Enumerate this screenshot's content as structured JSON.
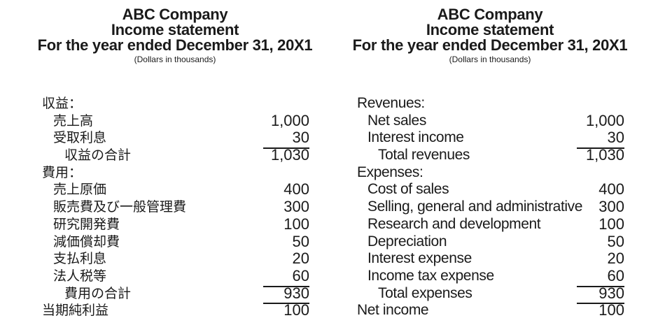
{
  "statements": [
    {
      "language": "ja",
      "title_lines": [
        "ABC Company",
        "Income statement",
        "For the year ended December 31, 20X1"
      ],
      "units": "(Dollars in thousands)",
      "rows": [
        {
          "label": "収益：",
          "amount": ""
        },
        {
          "label": "売上高",
          "amount": "1,000"
        },
        {
          "label": "受取利息",
          "amount": "30"
        },
        {
          "label": "収益の合計",
          "amount": "1,030"
        },
        {
          "label": "費用：",
          "amount": ""
        },
        {
          "label": "売上原価",
          "amount": "400"
        },
        {
          "label": "販売費及び一般管理費",
          "amount": "300"
        },
        {
          "label": "研究開発費",
          "amount": "100"
        },
        {
          "label": "減価償却費",
          "amount": "50"
        },
        {
          "label": "支払利息",
          "amount": "20"
        },
        {
          "label": "法人税等",
          "amount": "60"
        },
        {
          "label": "費用の合計",
          "amount": "930"
        },
        {
          "label": "当期純利益",
          "amount": "100"
        }
      ]
    },
    {
      "language": "en",
      "title_lines": [
        "ABC Company",
        "Income statement",
        "For the year ended December 31, 20X1"
      ],
      "units": "(Dollars in thousands)",
      "rows": [
        {
          "label": "Revenues:",
          "amount": ""
        },
        {
          "label": "Net sales",
          "amount": "1,000"
        },
        {
          "label": "Interest income",
          "amount": "30"
        },
        {
          "label": "Total revenues",
          "amount": "1,030"
        },
        {
          "label": "Expenses:",
          "amount": ""
        },
        {
          "label": "Cost of sales",
          "amount": "400"
        },
        {
          "label": "Selling, general and administrative",
          "amount": "300"
        },
        {
          "label": "Research and development",
          "amount": "100"
        },
        {
          "label": "Depreciation",
          "amount": "50"
        },
        {
          "label": "Interest expense",
          "amount": "20"
        },
        {
          "label": "Income tax expense",
          "amount": "60"
        },
        {
          "label": "Total expenses",
          "amount": "930"
        },
        {
          "label": "Net income",
          "amount": "100"
        }
      ]
    }
  ]
}
